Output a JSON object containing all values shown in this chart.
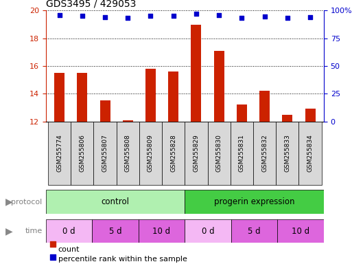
{
  "title": "GDS3495 / 429053",
  "samples": [
    "GSM255774",
    "GSM255806",
    "GSM255807",
    "GSM255808",
    "GSM255809",
    "GSM255828",
    "GSM255829",
    "GSM255830",
    "GSM255831",
    "GSM255832",
    "GSM255833",
    "GSM255834"
  ],
  "count_values": [
    15.5,
    15.5,
    13.5,
    12.1,
    15.8,
    15.6,
    19.0,
    17.1,
    13.2,
    14.2,
    12.5,
    12.9
  ],
  "percentile_values": [
    96,
    95,
    94,
    93.5,
    95,
    95,
    97,
    96,
    93.5,
    94.5,
    93.5,
    94
  ],
  "ylim_left": [
    12,
    20
  ],
  "ylim_right": [
    0,
    100
  ],
  "yticks_left": [
    12,
    14,
    16,
    18,
    20
  ],
  "yticks_right": [
    0,
    25,
    50,
    75,
    100
  ],
  "bar_color": "#cc2200",
  "dot_color": "#0000cc",
  "left_axis_color": "#cc2200",
  "right_axis_color": "#0000cc",
  "protocol_colors": [
    "#b0f0b0",
    "#44cc44"
  ],
  "protocol_labels": [
    "control",
    "progerin expression"
  ],
  "time_colors_light": "#f4b8f4",
  "time_colors_dark": "#dd66dd",
  "time_labels": [
    "0 d",
    "5 d",
    "10 d",
    "0 d",
    "5 d",
    "10 d"
  ],
  "sample_box_color": "#d8d8d8",
  "label_color": "#808080",
  "arrow_color": "#888888"
}
